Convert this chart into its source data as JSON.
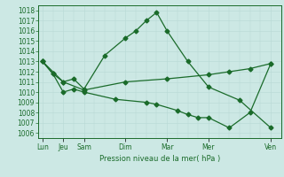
{
  "bg_color": "#cce8e4",
  "grid_color": "#b8d8d4",
  "line_color": "#1a6b2a",
  "xlabel": "Pression niveau de la mer( hPa )",
  "tick_labels": [
    "Lun",
    "Jeu",
    "Sam",
    "Dim",
    "Mar",
    "Mer",
    "Ven"
  ],
  "tick_positions": [
    0,
    1,
    2,
    4,
    6,
    8,
    11
  ],
  "xlim": [
    -0.2,
    11.5
  ],
  "ylim": [
    1005.5,
    1018.5
  ],
  "yticks": [
    1006,
    1007,
    1008,
    1009,
    1010,
    1011,
    1012,
    1013,
    1014,
    1015,
    1016,
    1017,
    1018
  ],
  "series1_x": [
    0,
    0.5,
    1.0,
    1.5,
    2.0,
    3.0,
    4.0,
    4.5,
    5.0,
    5.5,
    6.0,
    7.0,
    8.0,
    9.5,
    11.0
  ],
  "series1_y": [
    1013.0,
    1011.8,
    1011.0,
    1011.3,
    1010.3,
    1013.6,
    1015.3,
    1016.0,
    1017.0,
    1017.8,
    1016.0,
    1013.0,
    1010.5,
    1009.2,
    1006.5
  ],
  "series2_x": [
    0,
    0.5,
    1.0,
    1.5,
    2.0,
    3.5,
    5.0,
    5.5,
    6.5,
    7.0,
    7.5,
    8.0,
    9.0,
    10.0,
    11.0
  ],
  "series2_y": [
    1013.0,
    1011.8,
    1010.0,
    1010.3,
    1010.0,
    1009.3,
    1009.0,
    1008.8,
    1008.2,
    1007.8,
    1007.5,
    1007.5,
    1006.5,
    1008.0,
    1012.8
  ],
  "series3_x": [
    0,
    1.0,
    2.0,
    4.0,
    6.0,
    8.0,
    9.0,
    10.0,
    11.0
  ],
  "series3_y": [
    1013.0,
    1011.0,
    1010.2,
    1011.0,
    1011.3,
    1011.7,
    1012.0,
    1012.3,
    1012.8
  ],
  "xlabel_fontsize": 6.0,
  "tick_fontsize": 5.5,
  "linewidth": 0.9,
  "markersize": 2.5
}
